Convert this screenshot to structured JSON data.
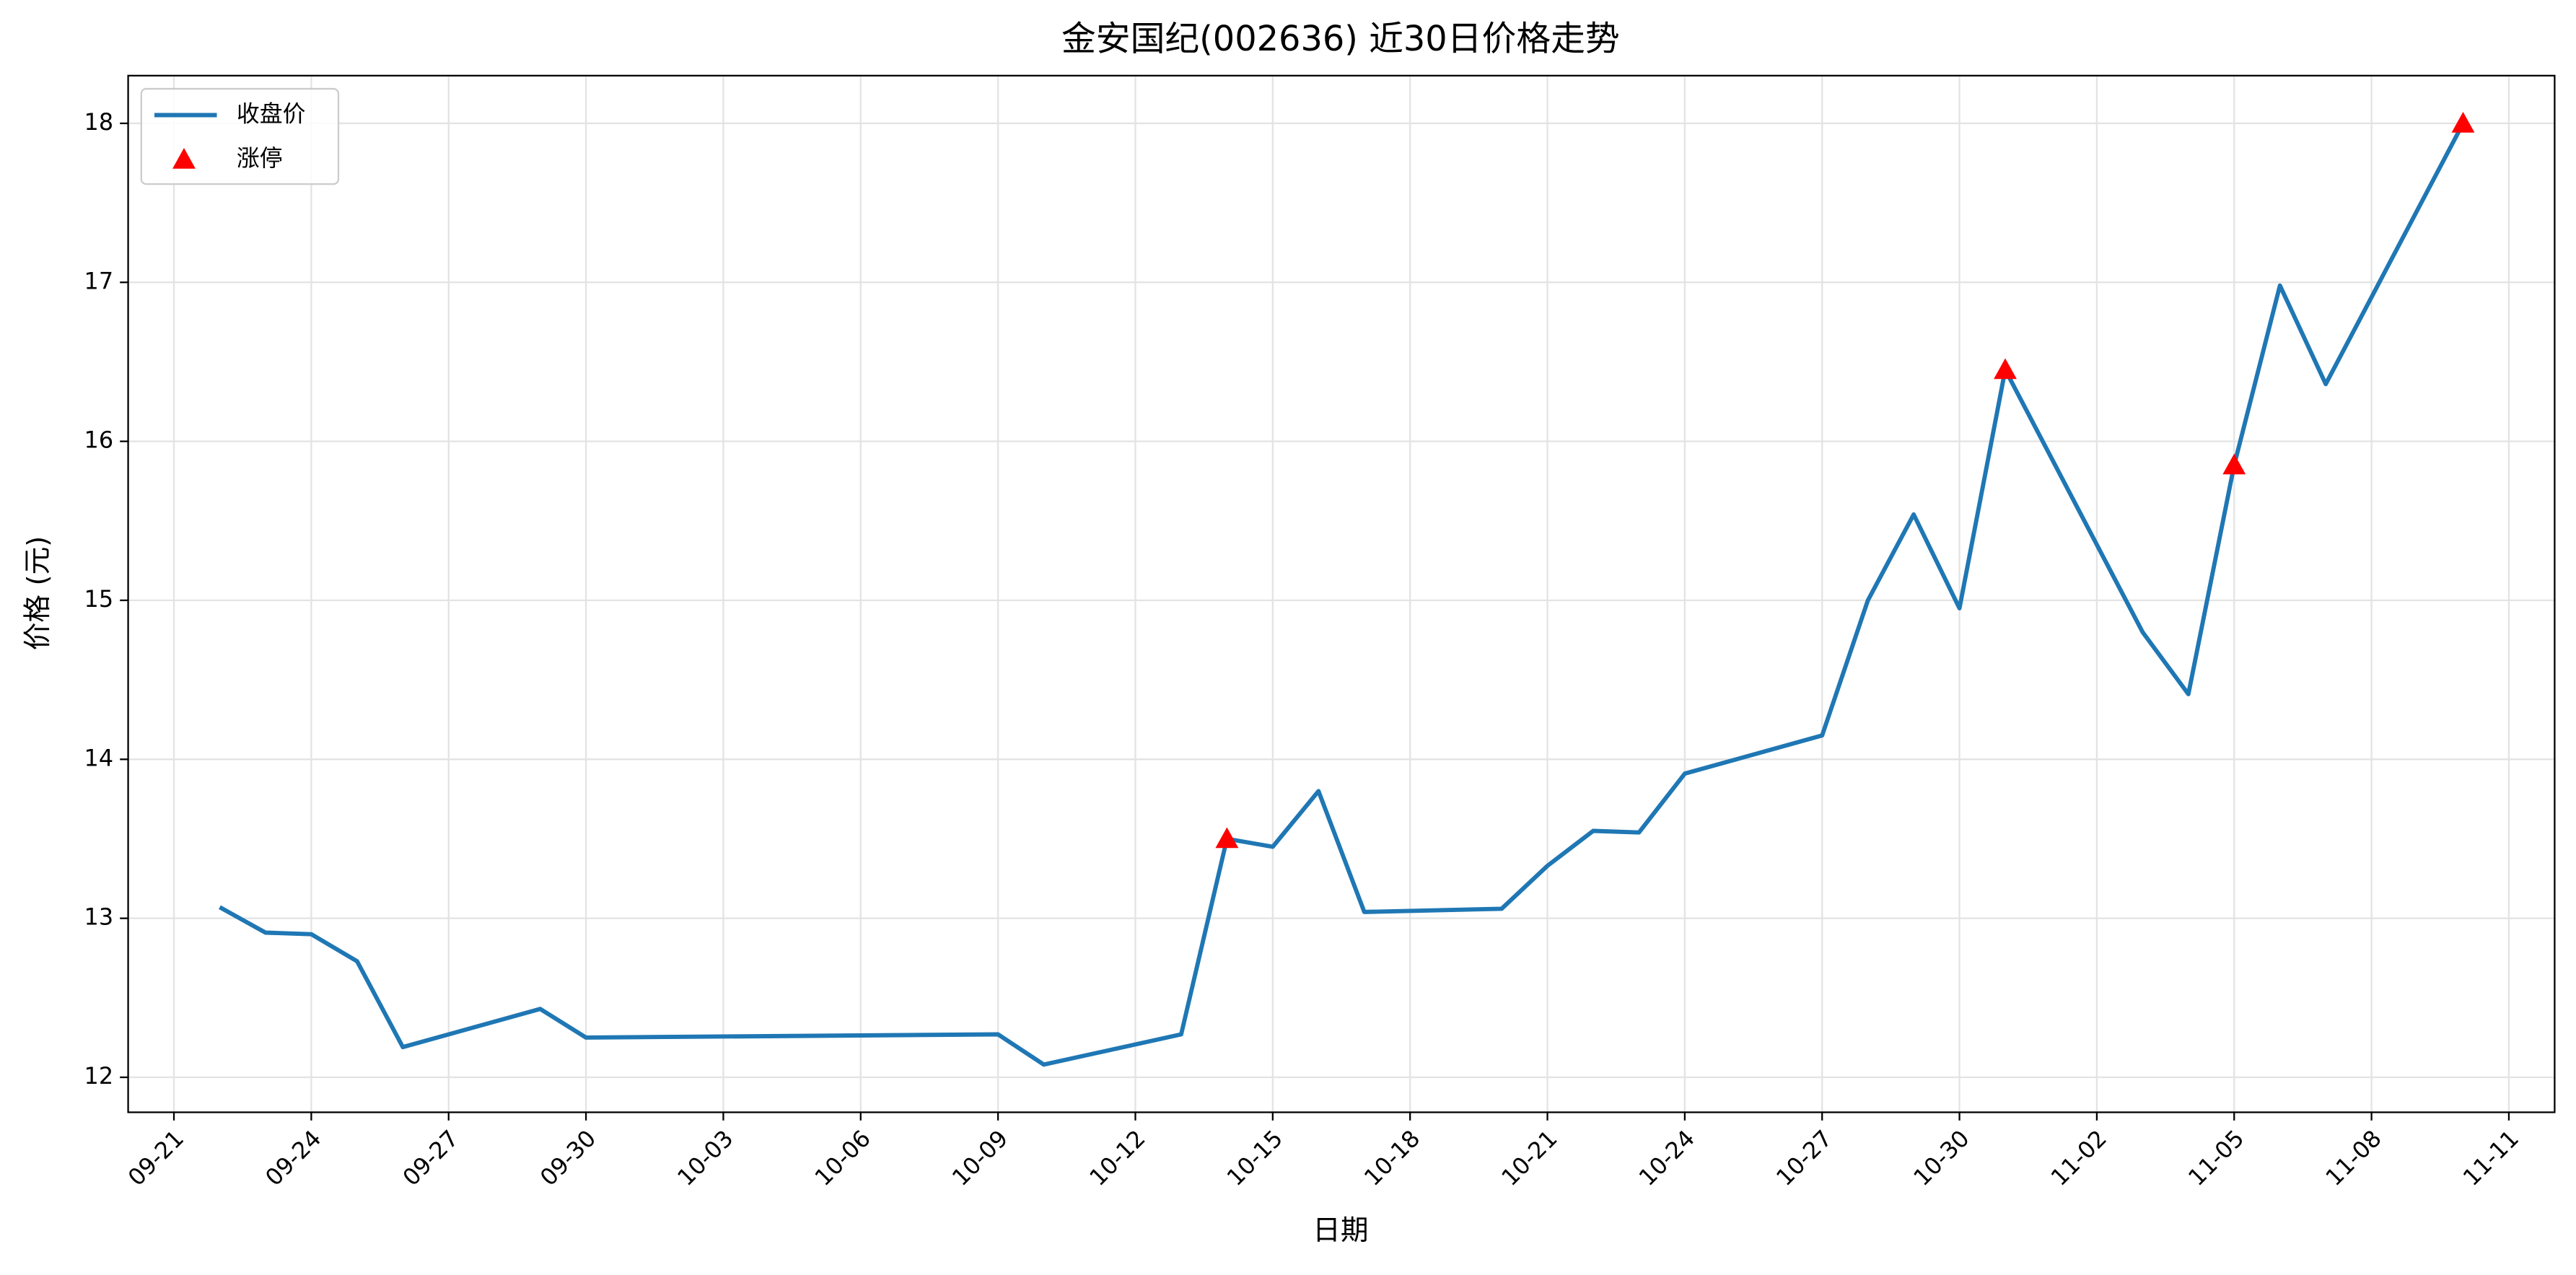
{
  "chart_data": {
    "type": "line",
    "title": "金安国纪(002636) 近30日价格走势",
    "x_label": "日期",
    "y_label": "价格 (元)",
    "series": [
      {
        "name": "收盘价",
        "type": "line",
        "color": "#1f77b4",
        "x": [
          "09-22",
          "09-23",
          "09-24",
          "09-25",
          "09-26",
          "09-29",
          "09-30",
          "10-09",
          "10-10",
          "10-13",
          "10-14",
          "10-15",
          "10-16",
          "10-17",
          "10-20",
          "10-21",
          "10-22",
          "10-23",
          "10-24",
          "10-27",
          "10-28",
          "10-29",
          "10-30",
          "10-31",
          "11-03",
          "11-04",
          "11-05",
          "11-06",
          "11-07",
          "11-10"
        ],
        "values": [
          13.07,
          12.91,
          12.9,
          12.73,
          12.19,
          12.43,
          12.25,
          12.27,
          12.08,
          12.27,
          13.5,
          13.45,
          13.8,
          13.04,
          13.06,
          13.33,
          13.55,
          13.54,
          13.91,
          14.15,
          15.0,
          15.54,
          14.95,
          16.45,
          14.8,
          14.41,
          15.85,
          16.98,
          16.36,
          18.0
        ]
      },
      {
        "name": "涨停",
        "type": "scatter",
        "marker": "triangle",
        "color": "#ff0000",
        "x": [
          "10-14",
          "10-31",
          "11-05",
          "11-10"
        ],
        "values": [
          13.5,
          16.45,
          15.85,
          18.0
        ]
      }
    ],
    "xlim": [
      "09-20",
      "11-12"
    ],
    "xticks": [
      "09-21",
      "09-24",
      "09-27",
      "09-30",
      "10-03",
      "10-06",
      "10-09",
      "10-12",
      "10-15",
      "10-18",
      "10-21",
      "10-24",
      "10-27",
      "10-30",
      "11-02",
      "11-05",
      "11-08",
      "11-11"
    ],
    "ylim": [
      11.78,
      18.3
    ],
    "yticks": [
      12,
      13,
      14,
      15,
      16,
      17,
      18
    ],
    "grid": true,
    "legend_position": "upper-left"
  }
}
